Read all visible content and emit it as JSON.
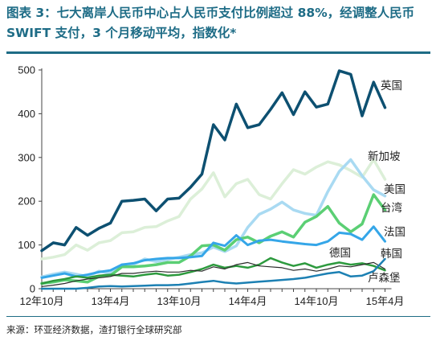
{
  "title": "图表 3：七大离岸人民币中心占人民币支付比例超过 88%，经调整人民币 SWIFT 支付，3 个月移动平均，指数化*",
  "source": "来源：环亚经济数据，渣打银行全球研究部",
  "chart_data": {
    "type": "line",
    "title": "图表 3：七大离岸人民币中心占人民币支付比例超过 88%，经调整人民币 SWIFT 支付，3 个月移动平均，指数化*",
    "xlabel": "",
    "ylabel": "",
    "ylim": [
      0,
      500
    ],
    "yticks": [
      0,
      100,
      200,
      300,
      400,
      500
    ],
    "x_tick_labels": [
      "12年10月",
      "13年4月",
      "13年10月",
      "14年4月",
      "14年10月",
      "15年4月"
    ],
    "x": [
      "12年10月",
      "12年11月",
      "12年12月",
      "13年1月",
      "13年2月",
      "13年3月",
      "13年4月",
      "13年5月",
      "13年6月",
      "13年7月",
      "13年8月",
      "13年9月",
      "13年10月",
      "13年11月",
      "13年12月",
      "14年1月",
      "14年2月",
      "14年3月",
      "14年4月",
      "14年5月",
      "14年6月",
      "14年7月",
      "14年8月",
      "14年9月",
      "14年10月",
      "14年11月",
      "14年12月",
      "15年1月",
      "15年2月",
      "15年3月",
      "15年4月"
    ],
    "grid": false,
    "legend": "labels at line ends",
    "series": [
      {
        "name": "英国",
        "color": "#0d5071",
        "width": 3.5,
        "values": [
          87,
          105,
          100,
          140,
          122,
          138,
          150,
          200,
          202,
          205,
          178,
          205,
          207,
          232,
          262,
          375,
          340,
          422,
          368,
          375,
          410,
          448,
          398,
          450,
          415,
          422,
          498,
          490,
          395,
          472,
          414
        ]
      },
      {
        "name": "新加坡",
        "color": "#dcefd8",
        "width": 3.5,
        "values": [
          68,
          72,
          78,
          100,
          88,
          105,
          110,
          128,
          130,
          140,
          142,
          155,
          165,
          205,
          228,
          265,
          210,
          240,
          250,
          215,
          205,
          240,
          272,
          262,
          278,
          290,
          283,
          270,
          255,
          295,
          250
        ]
      },
      {
        "name": "美国",
        "color": "#a9daf2",
        "width": 3.5,
        "values": [
          27,
          33,
          38,
          33,
          28,
          40,
          35,
          55,
          55,
          68,
          62,
          67,
          72,
          78,
          82,
          95,
          85,
          98,
          140,
          170,
          182,
          198,
          180,
          172,
          168,
          222,
          268,
          295,
          258,
          226,
          212
        ]
      },
      {
        "name": "台湾",
        "color": "#5bcf74",
        "width": 3.5,
        "values": [
          12,
          15,
          20,
          18,
          15,
          28,
          30,
          50,
          50,
          52,
          55,
          60,
          60,
          75,
          98,
          100,
          88,
          112,
          118,
          105,
          120,
          130,
          118,
          152,
          165,
          188,
          150,
          130,
          148,
          215,
          180
        ]
      },
      {
        "name": "法国",
        "color": "#35a6e8",
        "width": 3,
        "values": [
          25,
          30,
          35,
          28,
          32,
          38,
          42,
          55,
          58,
          65,
          68,
          70,
          70,
          72,
          75,
          105,
          98,
          122,
          100,
          110,
          112,
          108,
          105,
          102,
          100,
          108,
          128,
          125,
          112,
          142,
          108
        ]
      },
      {
        "name": "德国",
        "color": "#2d9a3e",
        "width": 2.5,
        "values": [
          12,
          18,
          22,
          28,
          25,
          30,
          32,
          30,
          28,
          32,
          35,
          30,
          32,
          38,
          45,
          55,
          48,
          52,
          48,
          55,
          70,
          60,
          52,
          58,
          48,
          55,
          60,
          55,
          58,
          52,
          42
        ]
      },
      {
        "name": "韩国",
        "color": "#1c80b3",
        "width": 2.5,
        "values": [
          0,
          0,
          0,
          0,
          2,
          5,
          6,
          5,
          6,
          7,
          8,
          8,
          9,
          12,
          15,
          18,
          14,
          12,
          14,
          16,
          18,
          20,
          22,
          25,
          30,
          35,
          38,
          28,
          30,
          40,
          68
        ]
      },
      {
        "name": "卢森堡",
        "color": "#2a2a2a",
        "width": 1.2,
        "values": [
          5,
          8,
          12,
          18,
          22,
          25,
          28,
          35,
          35,
          38,
          40,
          38,
          38,
          42,
          40,
          50,
          45,
          55,
          60,
          52,
          50,
          48,
          42,
          45,
          40,
          45,
          52,
          50,
          55,
          60,
          45
        ]
      }
    ],
    "label_order": [
      "英国",
      "新加坡",
      "美国",
      "台湾",
      "法国",
      "德国",
      "韩国",
      "卢森堡"
    ]
  }
}
